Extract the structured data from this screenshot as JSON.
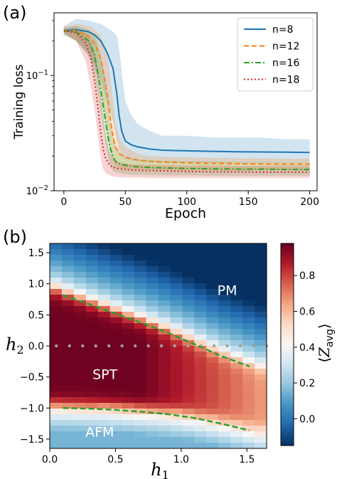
{
  "panel_a": {
    "label": "(a)",
    "chart_data": {
      "type": "line",
      "xlabel": "Epoch",
      "ylabel": "Training loss",
      "yscale": "log",
      "xlim": [
        -8,
        206
      ],
      "ylim": [
        0.01,
        0.35
      ],
      "x_ticks": [
        0,
        50,
        100,
        150,
        200
      ],
      "y_ticks": [
        {
          "value": 0.01,
          "base": "10",
          "exp": "−2"
        },
        {
          "value": 0.1,
          "base": "10",
          "exp": "−1"
        }
      ],
      "legend": "top-right",
      "grid": false,
      "series": [
        {
          "name": "n=8",
          "color": "#1f77b4",
          "style": "solid",
          "x": [
            0,
            10,
            20,
            25,
            30,
            35,
            40,
            43,
            45,
            47,
            50,
            55,
            60,
            70,
            80,
            100,
            120,
            140,
            160,
            180,
            200
          ],
          "y": [
            0.245,
            0.25,
            0.24,
            0.225,
            0.2,
            0.16,
            0.115,
            0.07,
            0.045,
            0.033,
            0.027,
            0.025,
            0.024,
            0.023,
            0.0225,
            0.0222,
            0.022,
            0.0218,
            0.0217,
            0.0216,
            0.0215
          ],
          "band_upper": [
            0.27,
            0.31,
            0.3,
            0.29,
            0.28,
            0.26,
            0.24,
            0.22,
            0.17,
            0.11,
            0.06,
            0.045,
            0.038,
            0.033,
            0.03,
            0.03,
            0.029,
            0.029,
            0.029,
            0.028,
            0.028
          ],
          "band_lower": [
            0.225,
            0.2,
            0.15,
            0.12,
            0.09,
            0.06,
            0.04,
            0.028,
            0.022,
            0.02,
            0.019,
            0.0185,
            0.018,
            0.0178,
            0.0177,
            0.0176,
            0.0175,
            0.0175,
            0.0175,
            0.0175,
            0.0175
          ]
        },
        {
          "name": "n=12",
          "color": "#ff7f0e",
          "style": "dashed",
          "x": [
            0,
            10,
            20,
            25,
            30,
            33,
            36,
            38,
            40,
            42,
            45,
            50,
            60,
            70,
            80,
            100,
            120,
            140,
            160,
            180,
            200
          ],
          "y": [
            0.245,
            0.245,
            0.22,
            0.19,
            0.14,
            0.095,
            0.06,
            0.04,
            0.029,
            0.024,
            0.021,
            0.0195,
            0.0185,
            0.018,
            0.0178,
            0.0175,
            0.0173,
            0.0172,
            0.0171,
            0.017,
            0.017
          ],
          "band_upper": [
            0.265,
            0.28,
            0.27,
            0.25,
            0.22,
            0.18,
            0.13,
            0.09,
            0.06,
            0.04,
            0.029,
            0.024,
            0.021,
            0.02,
            0.0198,
            0.0195,
            0.0193,
            0.0192,
            0.0191,
            0.019,
            0.019
          ],
          "band_lower": [
            0.225,
            0.2,
            0.16,
            0.12,
            0.08,
            0.05,
            0.03,
            0.022,
            0.018,
            0.0165,
            0.0158,
            0.0155,
            0.0153,
            0.0152,
            0.0151,
            0.015,
            0.015,
            0.015,
            0.015,
            0.015,
            0.015
          ]
        },
        {
          "name": "n=16",
          "color": "#2ca02c",
          "style": "dashdot",
          "x": [
            0,
            10,
            20,
            25,
            28,
            31,
            34,
            36,
            38,
            40,
            43,
            48,
            55,
            65,
            80,
            100,
            120,
            140,
            160,
            180,
            200
          ],
          "y": [
            0.245,
            0.24,
            0.2,
            0.15,
            0.1,
            0.065,
            0.04,
            0.029,
            0.023,
            0.0195,
            0.0175,
            0.0168,
            0.0163,
            0.016,
            0.0158,
            0.0156,
            0.0155,
            0.0154,
            0.0154,
            0.0153,
            0.0153
          ],
          "band_upper": [
            0.26,
            0.27,
            0.25,
            0.22,
            0.18,
            0.13,
            0.09,
            0.06,
            0.04,
            0.03,
            0.023,
            0.02,
            0.019,
            0.0185,
            0.0182,
            0.018,
            0.018,
            0.0178,
            0.0178,
            0.0177,
            0.0177
          ],
          "band_lower": [
            0.23,
            0.2,
            0.15,
            0.1,
            0.065,
            0.04,
            0.025,
            0.019,
            0.016,
            0.0148,
            0.0143,
            0.014,
            0.0138,
            0.0137,
            0.0136,
            0.0136,
            0.0135,
            0.0135,
            0.0135,
            0.0135,
            0.0135
          ]
        },
        {
          "name": "n=18",
          "color": "#d62728",
          "style": "dotted",
          "x": [
            0,
            10,
            18,
            22,
            25,
            28,
            30,
            32,
            34,
            37,
            40,
            45,
            55,
            65,
            80,
            100,
            120,
            140,
            160,
            180,
            200
          ],
          "y": [
            0.245,
            0.235,
            0.19,
            0.14,
            0.09,
            0.05,
            0.032,
            0.023,
            0.019,
            0.0168,
            0.016,
            0.0155,
            0.0152,
            0.015,
            0.0149,
            0.0147,
            0.0146,
            0.0146,
            0.0145,
            0.0145,
            0.0145
          ],
          "band_upper": [
            0.255,
            0.26,
            0.23,
            0.2,
            0.16,
            0.11,
            0.07,
            0.045,
            0.03,
            0.022,
            0.019,
            0.0175,
            0.017,
            0.0168,
            0.0167,
            0.0165,
            0.0165,
            0.0164,
            0.0164,
            0.0164,
            0.0164
          ],
          "band_lower": [
            0.235,
            0.2,
            0.13,
            0.08,
            0.05,
            0.028,
            0.019,
            0.0155,
            0.0143,
            0.0137,
            0.0133,
            0.0131,
            0.013,
            0.013,
            0.0129,
            0.0129,
            0.0129,
            0.0129,
            0.0129,
            0.0129,
            0.0129
          ]
        }
      ]
    }
  },
  "panel_b": {
    "label": "(b)",
    "chart_data": {
      "type": "heatmap",
      "xlabel_base": "h",
      "xlabel_sub": "1",
      "ylabel_base": "h",
      "ylabel_sub": "2",
      "xlim": [
        0.0,
        1.65
      ],
      "ylim": [
        -1.65,
        1.65
      ],
      "x_ticks": [
        "0.0",
        "0.5",
        "1.0",
        "1.5"
      ],
      "y_ticks": [
        "1.5",
        "1.0",
        "0.5",
        "0.0",
        "−0.5",
        "−1.0",
        "−1.5"
      ],
      "nx": 18,
      "ny": 36,
      "colormap": "RdBu_r",
      "colorbar": {
        "label_base": "Z",
        "label_sub": "avg",
        "range": [
          -0.15,
          0.98
        ],
        "ticks": [
          "0.8",
          "0.6",
          "0.4",
          "0.2",
          "0.0"
        ]
      },
      "regions": [
        {
          "label": "PM",
          "h1": 1.35,
          "h2": 0.9
        },
        {
          "label": "SPT",
          "h1": 0.42,
          "h2": -0.45
        },
        {
          "label": "AFM",
          "h1": 0.38,
          "h2": -1.38
        }
      ],
      "boundaries": [
        {
          "h1": [
            0.1,
            0.3,
            0.5,
            0.7,
            0.9,
            1.1,
            1.3,
            1.52
          ],
          "h2": [
            0.82,
            0.67,
            0.52,
            0.37,
            0.21,
            0.03,
            -0.16,
            -0.33
          ]
        },
        {
          "h1": [
            0.1,
            0.3,
            0.5,
            0.7,
            0.9,
            1.1,
            1.3,
            1.52
          ],
          "h2": [
            -1.0,
            -1.01,
            -1.03,
            -1.06,
            -1.1,
            -1.16,
            -1.25,
            -1.36
          ]
        }
      ],
      "boundary_color": "#2ca02c",
      "dotted_line": {
        "h2": 0.0,
        "h1_points": [
          0.05,
          0.15,
          0.25,
          0.35,
          0.45,
          0.55,
          0.65,
          0.75,
          0.85,
          0.95,
          1.05,
          1.15,
          1.25,
          1.35,
          1.45,
          1.55,
          1.65
        ]
      }
    }
  }
}
